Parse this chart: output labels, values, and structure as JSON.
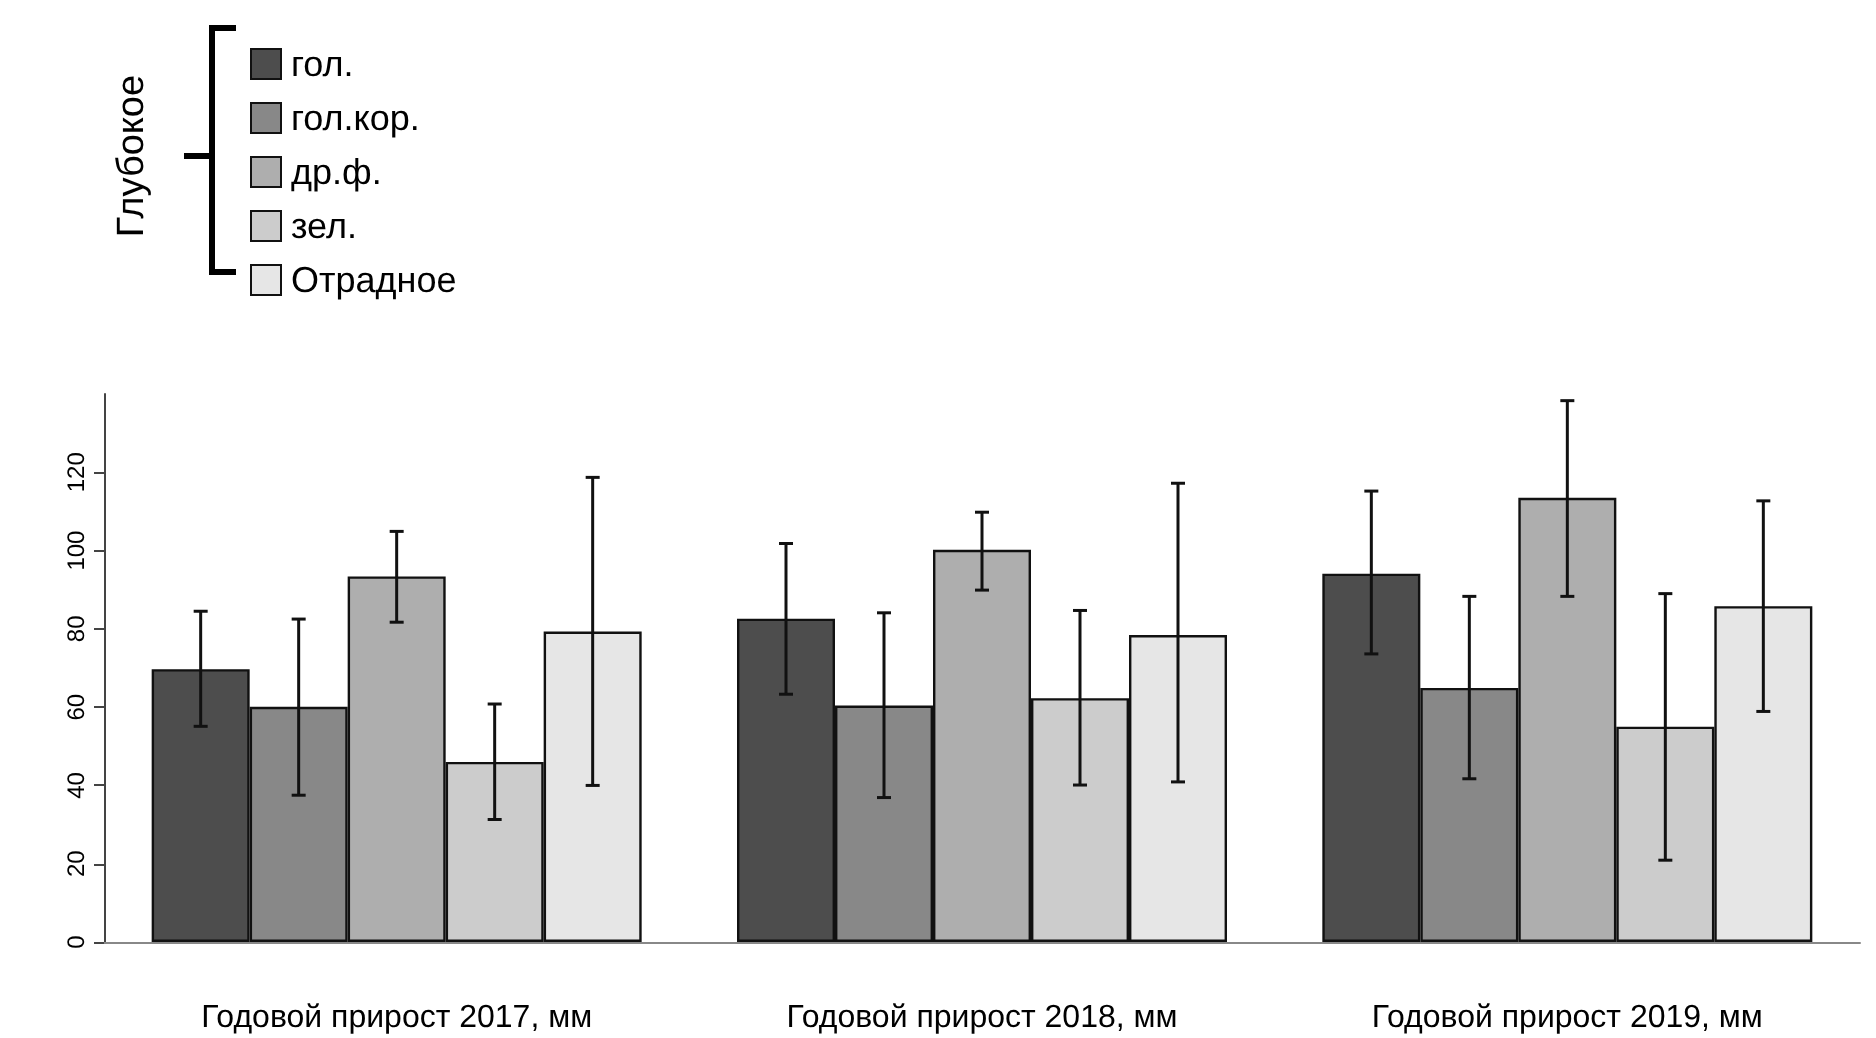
{
  "chart_data": {
    "type": "bar",
    "categories": [
      "Годовой прирост 2017, мм",
      "Годовой прирост 2018, мм",
      "Годовой прирост 2019, мм"
    ],
    "series": [
      {
        "name": "гол.",
        "color": "#4d4d4d",
        "values": [
          69.7,
          82.6,
          94.1
        ],
        "errors": [
          [
            55.1,
            84.5
          ],
          [
            63.3,
            101.8
          ],
          [
            73.6,
            115.2
          ]
        ]
      },
      {
        "name": "гол.кор.",
        "color": "#888888",
        "values": [
          60.1,
          60.4,
          64.9
        ],
        "errors": [
          [
            37.5,
            82.5
          ],
          [
            36.9,
            84.1
          ],
          [
            41.7,
            88.3
          ]
        ]
      },
      {
        "name": "др.ф.",
        "color": "#aeaeae",
        "values": [
          93.4,
          100.2,
          113.5
        ],
        "errors": [
          [
            81.7,
            104.9
          ],
          [
            89.9,
            109.8
          ],
          [
            88.3,
            138.3
          ]
        ]
      },
      {
        "name": "зел.",
        "color": "#cccccc",
        "values": [
          46,
          62.3,
          55
        ],
        "errors": [
          [
            31.3,
            60.8
          ],
          [
            40.1,
            84.7
          ],
          [
            20.9,
            89
          ]
        ]
      },
      {
        "name": "Отрадное",
        "color": "#e6e6e6",
        "values": [
          79.3,
          78.4,
          85.8
        ],
        "errors": [
          [
            40,
            118.7
          ],
          [
            40.9,
            117.2
          ],
          [
            58.9,
            112.7
          ]
        ]
      }
    ],
    "legend_title": "Глубокое",
    "legend": "top left",
    "grid": false,
    "ylim": [
      0,
      140
    ],
    "yticks": [
      0,
      20,
      40,
      60,
      80,
      100,
      120
    ]
  }
}
